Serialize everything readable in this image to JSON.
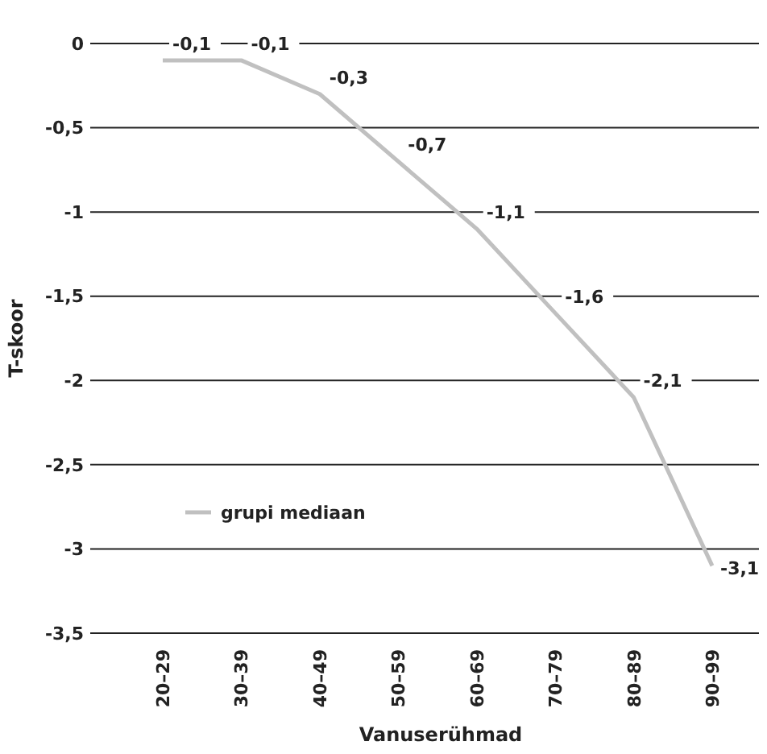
{
  "chart_data": {
    "type": "line",
    "xlabel": "Vanuserühmad",
    "ylabel": "T-skoor",
    "categories": [
      "20–29",
      "30–39",
      "40–49",
      "50–59",
      "60–69",
      "70–79",
      "80–89",
      "90–99"
    ],
    "series": [
      {
        "name": "grupi mediaan",
        "color": "#c0c0c0",
        "values": [
          -0.1,
          -0.1,
          -0.3,
          -0.7,
          -1.1,
          -1.6,
          -2.1,
          -3.1
        ],
        "value_labels": [
          "-0,1",
          "-0,1",
          "-0,3",
          "-0,7",
          "-1,1",
          "-1,6",
          "-2,1",
          "-3,1"
        ]
      }
    ],
    "ylim": [
      -3.5,
      0
    ],
    "yticks": [
      0,
      {
        "value": -0.5,
        "label": "-0,5"
      },
      -1,
      {
        "value": -1.5,
        "label": "-1,5"
      },
      -2,
      {
        "value": -2.5,
        "label": "-2,5"
      },
      -3,
      {
        "value": -3.5,
        "label": "-3,5"
      }
    ],
    "grid": "y",
    "legend": "bottom left",
    "marker": "none",
    "line_style": "solid"
  }
}
